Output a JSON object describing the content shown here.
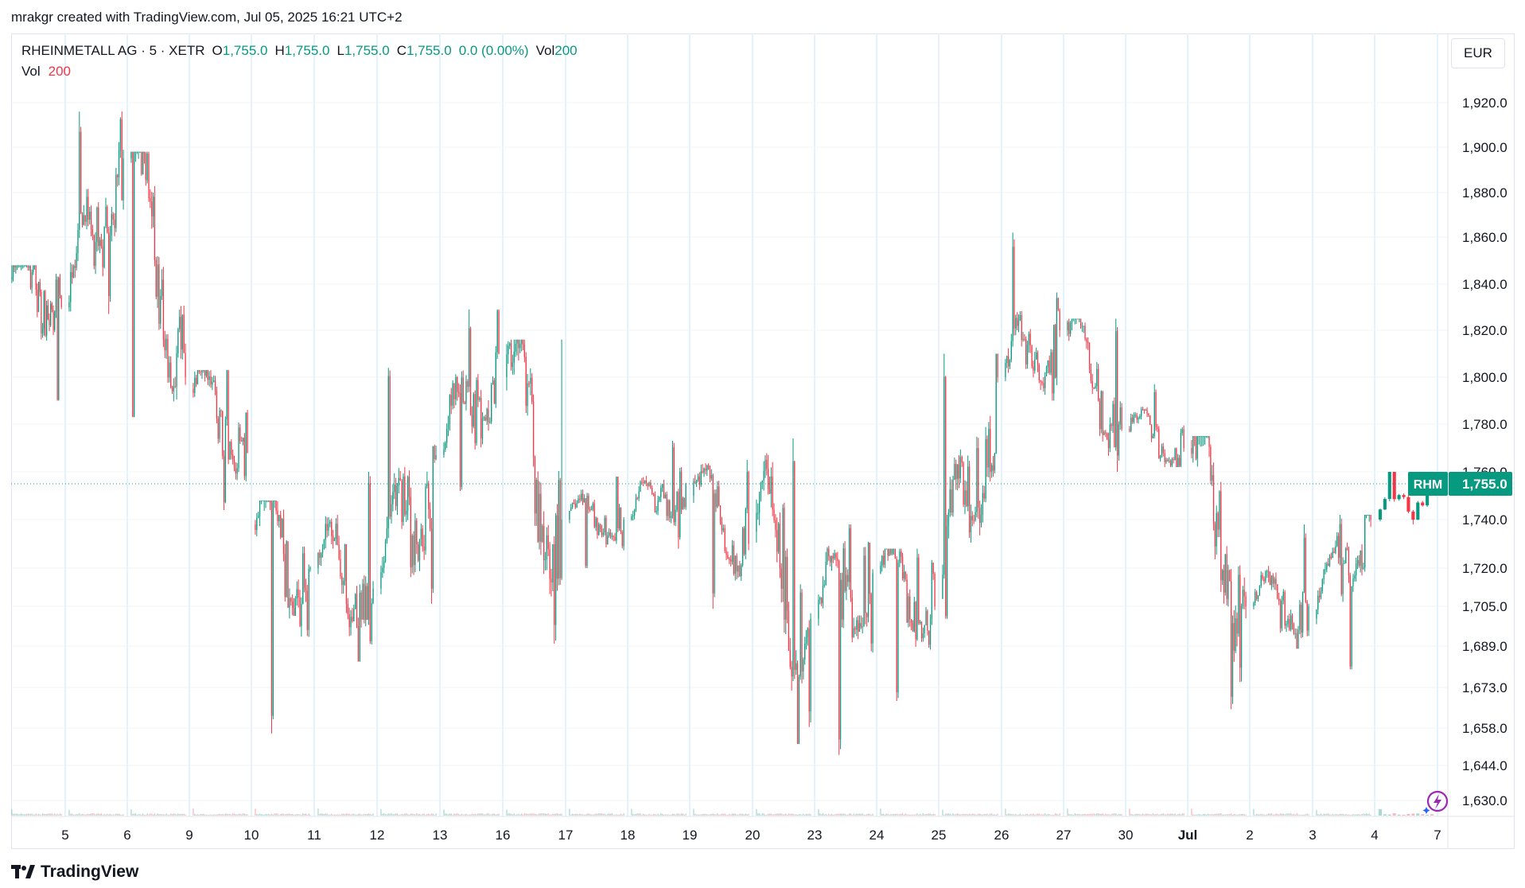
{
  "header": {
    "created_by": "mrakgr created with TradingView.com, Jul 05, 2025 16:21 UTC+2"
  },
  "legend": {
    "symbol": "RHEINMETALL AG · 5 · XETR",
    "open_label": "O",
    "open": "1,755.0",
    "high_label": "H",
    "high": "1,755.0",
    "low_label": "L",
    "low": "1,755.0",
    "close_label": "C",
    "close": "1,755.0",
    "change": "0.0 (0.00%)",
    "vol_label": "Vol",
    "vol": "200",
    "vol_row_label": "Vol",
    "vol_row_value": "200"
  },
  "price_scale": {
    "currency": "EUR",
    "ticks": [
      "1,920.0",
      "1,900.0",
      "1,880.0",
      "1,860.0",
      "1,840.0",
      "1,820.0",
      "1,800.0",
      "1,780.0",
      "1,760.0",
      "1,740.0",
      "1,720.0",
      "1,705.0",
      "1,689.0",
      "1,673.0",
      "1,658.0",
      "1,644.0",
      "1,630.0"
    ],
    "last_symbol": "RHM",
    "last_price": "1,755.0"
  },
  "time_scale": {
    "labels": [
      "5",
      "6",
      "9",
      "10",
      "11",
      "12",
      "13",
      "16",
      "17",
      "18",
      "19",
      "20",
      "23",
      "24",
      "25",
      "26",
      "27",
      "30",
      "Jul",
      "2",
      "3",
      "4",
      "7"
    ]
  },
  "colors": {
    "up": "#089981",
    "down": "#f23645",
    "grid": "#f0f3fa",
    "badge": "#089981"
  },
  "footer": {
    "brand": "TradingView"
  },
  "chart_data": {
    "type": "candlestick",
    "symbol": "RHEINMETALL AG",
    "interval": "5",
    "exchange": "XETR",
    "currency": "EUR",
    "x_labels": [
      "5",
      "6",
      "9",
      "10",
      "11",
      "12",
      "13",
      "16",
      "17",
      "18",
      "19",
      "20",
      "23",
      "24",
      "25",
      "26",
      "27",
      "30",
      "Jul",
      "2",
      "3",
      "4",
      "7"
    ],
    "y_ticks": [
      1920,
      1900,
      1880,
      1860,
      1840,
      1820,
      1800,
      1780,
      1760,
      1740,
      1720,
      1705,
      1689,
      1673,
      1658,
      1644,
      1630
    ],
    "last_price": 1755.0,
    "daily_path": [
      {
        "session": "5",
        "open": 1842,
        "high": 1848,
        "low": 1790,
        "close": 1830
      },
      {
        "session": "6",
        "open": 1830,
        "high": 1916,
        "low": 1827,
        "close": 1895
      },
      {
        "session": "9",
        "open": 1895,
        "high": 1898,
        "low": 1783,
        "close": 1800
      },
      {
        "session": "10",
        "open": 1795,
        "high": 1803,
        "low": 1744,
        "close": 1768
      },
      {
        "session": "11",
        "open": 1738,
        "high": 1748,
        "low": 1656,
        "close": 1720
      },
      {
        "session": "12",
        "open": 1720,
        "high": 1760,
        "low": 1683,
        "close": 1712
      },
      {
        "session": "13",
        "open": 1712,
        "high": 1804,
        "low": 1706,
        "close": 1767
      },
      {
        "session": "16",
        "open": 1767,
        "high": 1829,
        "low": 1752,
        "close": 1810
      },
      {
        "session": "17",
        "open": 1800,
        "high": 1816,
        "low": 1690,
        "close": 1740
      },
      {
        "session": "18",
        "open": 1740,
        "high": 1758,
        "low": 1720,
        "close": 1740
      },
      {
        "session": "19",
        "open": 1740,
        "high": 1773,
        "low": 1728,
        "close": 1755
      },
      {
        "session": "20",
        "open": 1750,
        "high": 1765,
        "low": 1704,
        "close": 1730
      },
      {
        "session": "23",
        "open": 1735,
        "high": 1774,
        "low": 1652,
        "close": 1700
      },
      {
        "session": "24",
        "open": 1700,
        "high": 1738,
        "low": 1648,
        "close": 1718
      },
      {
        "session": "25",
        "open": 1718,
        "high": 1728,
        "low": 1668,
        "close": 1705
      },
      {
        "session": "26",
        "open": 1708,
        "high": 1810,
        "low": 1700,
        "close": 1800
      },
      {
        "session": "27",
        "open": 1800,
        "high": 1862,
        "low": 1790,
        "close": 1820
      },
      {
        "session": "30",
        "open": 1820,
        "high": 1825,
        "low": 1760,
        "close": 1778
      },
      {
        "session": "Jul",
        "open": 1778,
        "high": 1797,
        "low": 1762,
        "close": 1770
      },
      {
        "session": "2",
        "open": 1770,
        "high": 1775,
        "low": 1665,
        "close": 1705
      },
      {
        "session": "3",
        "open": 1705,
        "high": 1738,
        "low": 1688,
        "close": 1705
      },
      {
        "session": "4",
        "open": 1700,
        "high": 1742,
        "low": 1680,
        "close": 1740
      },
      {
        "session": "7",
        "open": 1740,
        "high": 1760,
        "low": 1738,
        "close": 1755
      }
    ]
  }
}
